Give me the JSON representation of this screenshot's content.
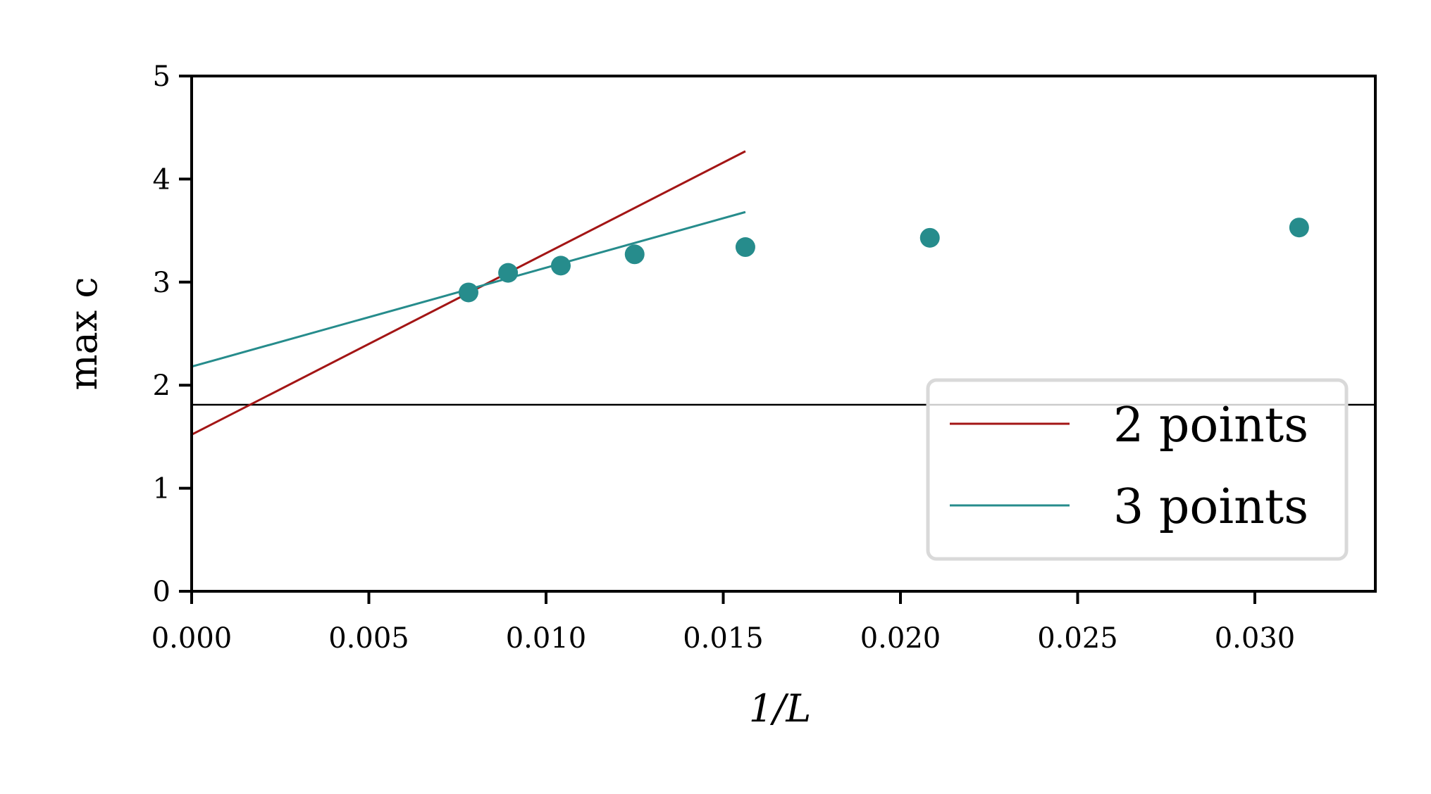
{
  "chart_data": {
    "type": "scatter",
    "xlabel": "1/L",
    "ylabel": "max c",
    "xlim": [
      0,
      0.0334
    ],
    "ylim": [
      0,
      5
    ],
    "x_ticks": [
      "0.000",
      "0.005",
      "0.010",
      "0.015",
      "0.020",
      "0.025",
      "0.030"
    ],
    "x_tick_values": [
      0,
      0.005,
      0.01,
      0.015,
      0.02,
      0.025,
      0.03
    ],
    "y_ticks": [
      "0",
      "1",
      "2",
      "3",
      "4",
      "5"
    ],
    "y_tick_values": [
      0,
      1,
      2,
      3,
      4,
      5
    ],
    "grid": false,
    "legend_position": "lower-right",
    "colors": {
      "points": "#268c8c",
      "fit_2": "#a31515",
      "fit_3": "#268c8c",
      "reference": "#000000",
      "axes": "#000000",
      "legend_border": "#d9d9d9"
    },
    "points": {
      "x": [
        0.03125,
        0.02083,
        0.015625,
        0.0125,
        0.010417,
        0.008929,
        0.0078125
      ],
      "y": [
        3.53,
        3.43,
        3.34,
        3.27,
        3.16,
        3.09,
        2.9
      ]
    },
    "reference_line": {
      "y": 1.81
    },
    "series": [
      {
        "name": "2 points",
        "x": [
          0,
          0.015625
        ],
        "y": [
          1.52,
          4.27
        ]
      },
      {
        "name": "3 points",
        "x": [
          0,
          0.015625
        ],
        "y": [
          2.18,
          3.68
        ]
      }
    ]
  }
}
